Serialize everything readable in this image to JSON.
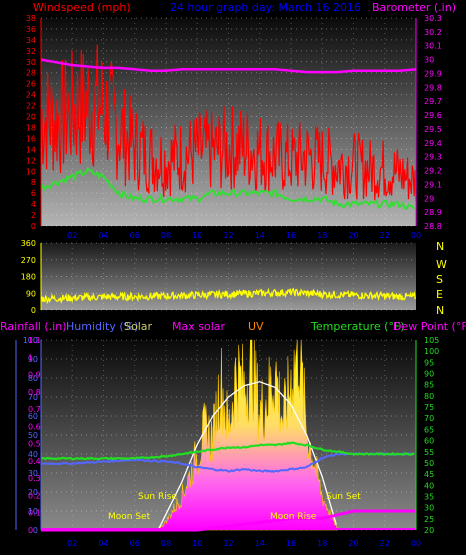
{
  "colors": {
    "wind": "#ff0000",
    "avgwind": "#33dd33",
    "baro": "#ff00ff",
    "winddir": "#ffff00",
    "humidity": "#5566ff",
    "temp": "#22dd22",
    "solar": "#ffff00",
    "maxsolar": "#ffffff",
    "uv": "#ff00ff",
    "rain": "#ff00ff",
    "date": "#0000ff",
    "label_red": "#ff0000",
    "label_magenta": "#ff00ff",
    "axis_green": "#22dd22",
    "axis_blue": "#5566ff",
    "axis_yellow": "#ffff00"
  },
  "header": {
    "windspeed": "Windspeed (mph)",
    "date": "24 hour graph day:  March 16 2016",
    "barometer": "Barometer (.in)"
  },
  "bottom_header": {
    "rainfall": "Rainfall (.in)",
    "humidity": "Humidity (%)",
    "solar": "Solar",
    "maxsolar": "Max solar",
    "uv": "UV",
    "temperature": "Temperature (°F)",
    "dewpoint": "Dew Point (°F)"
  },
  "annotations": {
    "moonset": "Moon Set",
    "sunrise": "Sun Rise",
    "moonrise": "Moon Rise",
    "sunset": "Sun Set"
  },
  "compass": [
    "N",
    "W",
    "S",
    "E",
    "N"
  ],
  "chart_data": [
    {
      "type": "line",
      "title": "24 hour graph day:  March 16 2016",
      "x_ticks": [
        "02",
        "04",
        "06",
        "08",
        "10",
        "12",
        "14",
        "16",
        "18",
        "20",
        "22",
        "00"
      ],
      "xlim": [
        0,
        24
      ],
      "y_left_label": "Windspeed (mph)",
      "y_left_ticks": [
        "0",
        "2",
        "4",
        "6",
        "8",
        "10",
        "12",
        "14",
        "16",
        "18",
        "20",
        "22",
        "24",
        "26",
        "28",
        "30",
        "32",
        "34",
        "36",
        "38"
      ],
      "ylim_left": [
        0,
        38
      ],
      "y_right_label": "Barometer (.in)",
      "y_right_ticks": [
        "28.8",
        "28.9",
        "29",
        "29.1",
        "29.2",
        "29.3",
        "29.4",
        "29.5",
        "29.6",
        "29.7",
        "29.8",
        "29.9",
        "30",
        "30.1",
        "30.2",
        "30.3"
      ],
      "ylim_right": [
        28.8,
        30.3
      ],
      "grid": true,
      "series": [
        {
          "name": "Windspeed (mph)",
          "kind": "gust",
          "x": [
            0,
            1,
            2,
            3,
            4,
            5,
            6,
            7,
            8,
            9,
            10,
            11,
            12,
            13,
            14,
            15,
            16,
            17,
            18,
            19,
            20,
            21,
            22,
            23,
            24
          ],
          "y": [
            25,
            24,
            26,
            28,
            27,
            22,
            18,
            16,
            15,
            16,
            17,
            17,
            18,
            18,
            17,
            16,
            15,
            16,
            15,
            14,
            14,
            13,
            13,
            12,
            10
          ]
        },
        {
          "name": "avg",
          "kind": "average",
          "x": [
            0,
            1,
            2,
            3,
            4,
            5,
            6,
            7,
            8,
            9,
            10,
            11,
            12,
            13,
            14,
            15,
            16,
            17,
            18,
            19,
            20,
            21,
            22,
            23,
            24
          ],
          "y": [
            7,
            8,
            9,
            10,
            9,
            6,
            5,
            5,
            5,
            5,
            5,
            6,
            6,
            6,
            6,
            6,
            5,
            5,
            5,
            4,
            4,
            4,
            4,
            4,
            3
          ]
        },
        {
          "name": "Barometer (.in)",
          "x": [
            0,
            1,
            2,
            3,
            4,
            5,
            6,
            7,
            8,
            9,
            10,
            11,
            12,
            13,
            14,
            15,
            16,
            17,
            18,
            19,
            20,
            21,
            22,
            23,
            24
          ],
          "y": [
            30.0,
            29.98,
            29.96,
            29.95,
            29.94,
            29.94,
            29.93,
            29.92,
            29.92,
            29.93,
            29.93,
            29.93,
            29.93,
            29.93,
            29.93,
            29.93,
            29.92,
            29.91,
            29.91,
            29.91,
            29.92,
            29.92,
            29.92,
            29.92,
            29.93
          ]
        }
      ]
    },
    {
      "type": "line",
      "x_ticks": [],
      "xlim": [
        0,
        24
      ],
      "y_left_ticks": [
        "0",
        "90",
        "180",
        "270",
        "360"
      ],
      "ylim_left": [
        0,
        360
      ],
      "grid": true,
      "series": [
        {
          "name": "wind direction",
          "x": [
            0,
            2,
            4,
            6,
            8,
            10,
            12,
            14,
            16,
            18,
            20,
            22,
            24
          ],
          "y": [
            60,
            65,
            70,
            72,
            75,
            80,
            85,
            90,
            95,
            85,
            80,
            75,
            70
          ]
        }
      ]
    },
    {
      "type": "area",
      "x_ticks": [
        "02",
        "04",
        "06",
        "08",
        "10",
        "12",
        "14",
        "16",
        "18",
        "20",
        "22",
        "00"
      ],
      "xlim": [
        0,
        24
      ],
      "y_left_ticks": [
        "0",
        "10",
        "20",
        "30",
        "40",
        "50",
        "60",
        "70",
        "80",
        "90",
        "100"
      ],
      "ylim_left": [
        0,
        100
      ],
      "y_rain_ticks": [
        "0",
        "0.1",
        "0.2",
        "0.3",
        "0.4",
        "0.5",
        "0.6",
        "0.7",
        "0.8",
        "0.9",
        "1",
        "1.1"
      ],
      "ylim_rain": [
        0,
        1.1
      ],
      "y_right_ticks": [
        "20",
        "25",
        "30",
        "35",
        "40",
        "45",
        "50",
        "55",
        "60",
        "65",
        "70",
        "75",
        "80",
        "85",
        "90",
        "95",
        "100",
        "105"
      ],
      "ylim_right": [
        20,
        105
      ],
      "grid": true,
      "series": [
        {
          "name": "Solar",
          "x": [
            7.5,
            8,
            9,
            10,
            10.5,
            11,
            11.5,
            12,
            12.5,
            13,
            13.5,
            14,
            14.5,
            15,
            15.5,
            16,
            16.5,
            17,
            17.5,
            18,
            19
          ],
          "y": [
            0,
            5,
            20,
            45,
            60,
            55,
            90,
            60,
            95,
            85,
            100,
            70,
            80,
            95,
            65,
            90,
            110,
            60,
            40,
            20,
            0
          ]
        },
        {
          "name": "Max solar",
          "x": [
            7.5,
            9,
            10,
            11,
            12,
            13,
            14,
            15,
            16,
            17,
            18,
            19
          ],
          "y": [
            0,
            25,
            45,
            60,
            70,
            76,
            78,
            75,
            66,
            50,
            28,
            0
          ]
        },
        {
          "name": "UV",
          "x": [
            0,
            10,
            12,
            14,
            16,
            18,
            19,
            20,
            24
          ],
          "y": [
            0,
            0,
            2,
            4,
            6,
            6,
            8,
            10,
            10
          ]
        },
        {
          "name": "Humidity (%)",
          "x": [
            0,
            2,
            4,
            6,
            8,
            9,
            10,
            11,
            12,
            13,
            14,
            15,
            16,
            17,
            18,
            19,
            20,
            22,
            24
          ],
          "y": [
            35,
            35,
            36,
            37,
            36,
            35,
            33,
            32,
            31,
            32,
            31,
            31,
            32,
            33,
            38,
            40,
            40,
            40,
            40
          ]
        },
        {
          "name": "Temperature (°F)",
          "x": [
            0,
            2,
            4,
            6,
            8,
            9,
            10,
            11,
            12,
            13,
            14,
            15,
            16,
            17,
            18,
            19,
            20,
            22,
            24
          ],
          "y": [
            52,
            52,
            52,
            52,
            53,
            54,
            55,
            56,
            57,
            57,
            58,
            58,
            59,
            58,
            56,
            55,
            54,
            54,
            54
          ]
        }
      ]
    }
  ]
}
